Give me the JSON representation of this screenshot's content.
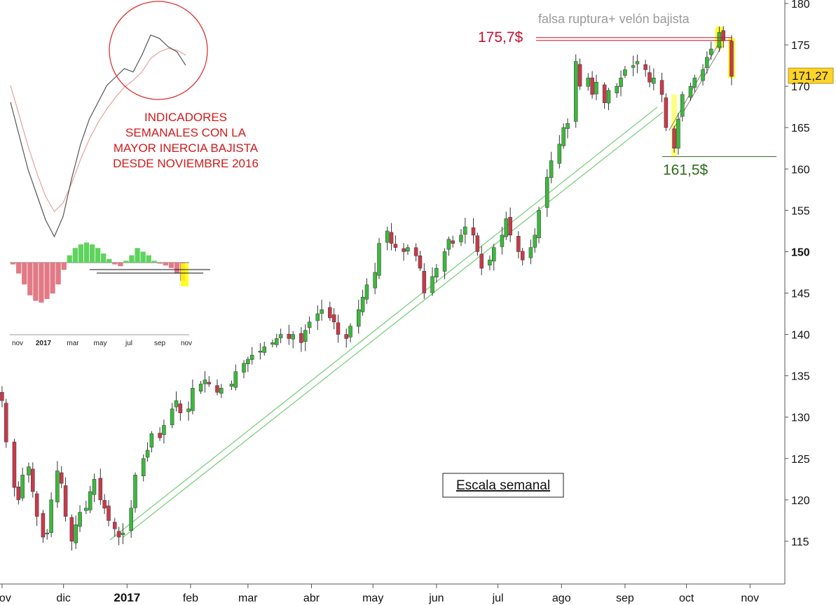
{
  "chart_data": {
    "type": "candlestick",
    "title": "",
    "xlabel": "",
    "ylabel": "",
    "ylim": [
      110,
      180
    ],
    "y_ticks": [
      {
        "value": 115,
        "label": "115"
      },
      {
        "value": 120,
        "label": "120"
      },
      {
        "value": 125,
        "label": "125"
      },
      {
        "value": 130,
        "label": "130"
      },
      {
        "value": 135,
        "label": "135"
      },
      {
        "value": 140,
        "label": "140"
      },
      {
        "value": 145,
        "label": "145"
      },
      {
        "value": 150,
        "label": "150",
        "bold": true
      },
      {
        "value": 155,
        "label": "155"
      },
      {
        "value": 160,
        "label": "160"
      },
      {
        "value": 165,
        "label": "165"
      },
      {
        "value": 170,
        "label": "170"
      },
      {
        "value": 175,
        "label": "175"
      },
      {
        "value": 180,
        "label": "180"
      }
    ],
    "x_ticks": [
      {
        "date": "2016-11-01",
        "label": "nov"
      },
      {
        "date": "2016-12-01",
        "label": "dic"
      },
      {
        "date": "2017-01-01",
        "label": "2017",
        "bold": true
      },
      {
        "date": "2017-02-01",
        "label": "feb"
      },
      {
        "date": "2017-03-01",
        "label": "mar"
      },
      {
        "date": "2017-04-01",
        "label": "abr"
      },
      {
        "date": "2017-05-01",
        "label": "may"
      },
      {
        "date": "2017-06-01",
        "label": "jun"
      },
      {
        "date": "2017-07-01",
        "label": "jul"
      },
      {
        "date": "2017-08-01",
        "label": "ago"
      },
      {
        "date": "2017-09-01",
        "label": "sep"
      },
      {
        "date": "2017-10-01",
        "label": "oct"
      },
      {
        "date": "2017-11-01",
        "label": "nov"
      }
    ],
    "xrange": [
      "2016-10-31",
      "2017-11-18"
    ],
    "grid": false,
    "colors": {
      "up": "#3cb93c",
      "down": "#c93a4b",
      "wick": "#333333",
      "trendline": "#7fcf7f",
      "resistance": "#c8102e",
      "support": "#2e6b1a",
      "highlight": "#ffff00"
    },
    "closes": [
      [
        "2016-11-01",
        132
      ],
      [
        "2016-11-03",
        127
      ],
      [
        "2016-11-07",
        121.5
      ],
      [
        "2016-11-09",
        120
      ],
      [
        "2016-11-11",
        123
      ],
      [
        "2016-11-14",
        124
      ],
      [
        "2016-11-16",
        121
      ],
      [
        "2016-11-18",
        118
      ],
      [
        "2016-11-21",
        115.5
      ],
      [
        "2016-11-23",
        116
      ],
      [
        "2016-11-25",
        120
      ],
      [
        "2016-11-28",
        123.5
      ],
      [
        "2016-11-30",
        122
      ],
      [
        "2016-12-02",
        118
      ],
      [
        "2016-12-05",
        115
      ],
      [
        "2016-12-07",
        117
      ],
      [
        "2016-12-09",
        118.5
      ],
      [
        "2016-12-12",
        119
      ],
      [
        "2016-12-14",
        121
      ],
      [
        "2016-12-16",
        122.5
      ],
      [
        "2016-12-19",
        120
      ],
      [
        "2016-12-21",
        119
      ],
      [
        "2016-12-23",
        117.5
      ],
      [
        "2016-12-26",
        116.5
      ],
      [
        "2016-12-28",
        115.5
      ],
      [
        "2016-12-30",
        116
      ],
      [
        "2017-01-03",
        119
      ],
      [
        "2017-01-05",
        123
      ],
      [
        "2017-01-09",
        125
      ],
      [
        "2017-01-11",
        126
      ],
      [
        "2017-01-13",
        128
      ],
      [
        "2017-01-17",
        127.5
      ],
      [
        "2017-01-19",
        129
      ],
      [
        "2017-01-23",
        131
      ],
      [
        "2017-01-25",
        132
      ],
      [
        "2017-01-27",
        130.5
      ],
      [
        "2017-01-31",
        131
      ],
      [
        "2017-02-02",
        133.5
      ],
      [
        "2017-02-06",
        134
      ],
      [
        "2017-02-08",
        134.5
      ],
      [
        "2017-02-10",
        134
      ],
      [
        "2017-02-14",
        133
      ],
      [
        "2017-02-16",
        133.5
      ],
      [
        "2017-02-21",
        134
      ],
      [
        "2017-02-23",
        135.5
      ],
      [
        "2017-02-27",
        136.5
      ],
      [
        "2017-03-01",
        137
      ],
      [
        "2017-03-03",
        137.5
      ],
      [
        "2017-03-07",
        138
      ],
      [
        "2017-03-09",
        138.5
      ],
      [
        "2017-03-13",
        139
      ],
      [
        "2017-03-15",
        139.5
      ],
      [
        "2017-03-17",
        140
      ],
      [
        "2017-03-21",
        139.5
      ],
      [
        "2017-03-23",
        140
      ],
      [
        "2017-03-27",
        139
      ],
      [
        "2017-03-29",
        140.5
      ],
      [
        "2017-03-31",
        141.5
      ],
      [
        "2017-04-04",
        142.5
      ],
      [
        "2017-04-06",
        143
      ],
      [
        "2017-04-10",
        142
      ],
      [
        "2017-04-12",
        141.5
      ],
      [
        "2017-04-14",
        140
      ],
      [
        "2017-04-18",
        139.5
      ],
      [
        "2017-04-20",
        141
      ],
      [
        "2017-04-24",
        143
      ],
      [
        "2017-04-26",
        144.5
      ],
      [
        "2017-04-28",
        146
      ],
      [
        "2017-05-02",
        147.5
      ],
      [
        "2017-05-04",
        151
      ],
      [
        "2017-05-08",
        152.5
      ],
      [
        "2017-05-10",
        151
      ],
      [
        "2017-05-12",
        150.5
      ],
      [
        "2017-05-16",
        150
      ],
      [
        "2017-05-18",
        150.5
      ],
      [
        "2017-05-22",
        149.5
      ],
      [
        "2017-05-24",
        148
      ],
      [
        "2017-05-26",
        145
      ],
      [
        "2017-05-30",
        147
      ],
      [
        "2017-06-01",
        148
      ],
      [
        "2017-06-05",
        150
      ],
      [
        "2017-06-07",
        151.5
      ],
      [
        "2017-06-09",
        151
      ],
      [
        "2017-06-13",
        152
      ],
      [
        "2017-06-15",
        153
      ],
      [
        "2017-06-19",
        152
      ],
      [
        "2017-06-21",
        150
      ],
      [
        "2017-06-23",
        148
      ],
      [
        "2017-06-27",
        149
      ],
      [
        "2017-06-29",
        150.5
      ],
      [
        "2017-07-03",
        152
      ],
      [
        "2017-07-05",
        154
      ],
      [
        "2017-07-07",
        152
      ],
      [
        "2017-07-11",
        150
      ],
      [
        "2017-07-13",
        149
      ],
      [
        "2017-07-17",
        150.5
      ],
      [
        "2017-07-19",
        152
      ],
      [
        "2017-07-21",
        155
      ],
      [
        "2017-07-25",
        159
      ],
      [
        "2017-07-27",
        161
      ],
      [
        "2017-07-31",
        163
      ],
      [
        "2017-08-02",
        165
      ],
      [
        "2017-08-04",
        165.5
      ],
      [
        "2017-08-08",
        173
      ],
      [
        "2017-08-10",
        170
      ],
      [
        "2017-08-14",
        171
      ],
      [
        "2017-08-16",
        169
      ],
      [
        "2017-08-18",
        170.5
      ],
      [
        "2017-08-22",
        168
      ],
      [
        "2017-08-24",
        169.5
      ],
      [
        "2017-08-28",
        170
      ],
      [
        "2017-08-30",
        171
      ],
      [
        "2017-09-01",
        172
      ],
      [
        "2017-09-05",
        172.5
      ],
      [
        "2017-09-07",
        173
      ],
      [
        "2017-09-11",
        172
      ],
      [
        "2017-09-13",
        170.5
      ],
      [
        "2017-09-15",
        171
      ],
      [
        "2017-09-19",
        169
      ],
      [
        "2017-09-21",
        165
      ],
      [
        "2017-09-25",
        162.5
      ],
      [
        "2017-09-27",
        166
      ],
      [
        "2017-09-29",
        169
      ],
      [
        "2017-10-03",
        170
      ],
      [
        "2017-10-05",
        171
      ],
      [
        "2017-10-09",
        172
      ],
      [
        "2017-10-11",
        173.5
      ],
      [
        "2017-10-13",
        174.5
      ],
      [
        "2017-10-17",
        176.5
      ],
      [
        "2017-10-19",
        175.5
      ],
      [
        "2017-10-23",
        171.2
      ]
    ],
    "last_price": {
      "value": 171.27,
      "label": "171,27"
    },
    "resistance": {
      "value": 175.7,
      "label": "175,7$"
    },
    "support": {
      "value": 161.5,
      "label": "161,5$"
    },
    "annotations": {
      "top_note": "falsa ruptura+ velón bajista",
      "scale_note": "Escala semanal",
      "indicator_note": [
        "INDICADORES",
        "SEMANALES CON LA",
        "MAYOR INERCIA BAJISTA",
        "DESDE NOVIEMBRE 2016"
      ]
    },
    "inset": {
      "x_ticks": [
        {
          "label": "nov"
        },
        {
          "label": "2017",
          "bold": true
        },
        {
          "label": "mar"
        },
        {
          "label": "may"
        },
        {
          "label": "jul"
        },
        {
          "label": "sep"
        },
        {
          "label": "nov"
        }
      ],
      "histogram": [
        -0.5,
        -3,
        -6,
        -9,
        -10.5,
        -11,
        -10,
        -8.5,
        -6,
        -2,
        2,
        4,
        5,
        5.5,
        5,
        4,
        2.5,
        1,
        -0.5,
        -1,
        0.5,
        2,
        4,
        3,
        2,
        0.5,
        -0.3,
        -0.8,
        -1.5,
        -3,
        -5
      ],
      "fast_line": [
        60,
        40,
        20,
        5,
        -10,
        -20,
        -8,
        15,
        35,
        50,
        60,
        70,
        75,
        80,
        78,
        88,
        100,
        98,
        93,
        90,
        82
      ],
      "slow_line": [
        70,
        52,
        34,
        18,
        4,
        -5,
        0,
        12,
        26,
        38,
        48,
        56,
        63,
        69,
        73,
        78,
        86,
        90,
        92,
        91,
        88
      ]
    }
  }
}
